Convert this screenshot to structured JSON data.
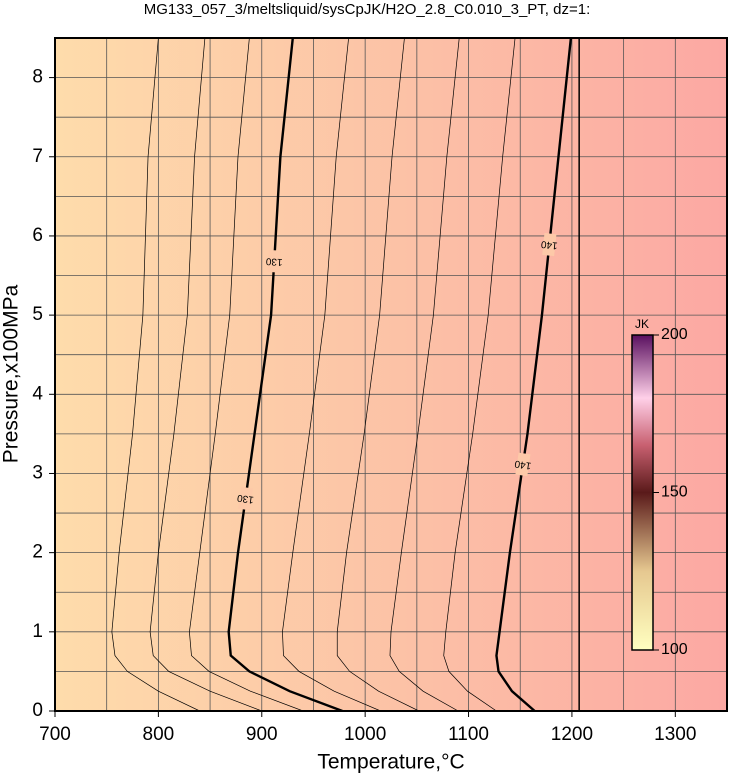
{
  "chart_data": {
    "type": "contour",
    "title": "MG133_057_3/meltsliquid/sysCpJK/H2O_2.8_C0.010_3_PT, dz=1:",
    "x_label": "Temperature,°C",
    "y_label": "Pressure,x100MPa",
    "xlim": [
      700,
      1350
    ],
    "ylim": [
      0,
      8.5
    ],
    "xticks": [
      700,
      800,
      900,
      1000,
      1100,
      1200,
      1300
    ],
    "yticks": [
      0,
      1,
      2,
      3,
      4,
      5,
      6,
      7,
      8
    ],
    "x_minor_grid": [
      750,
      850,
      950,
      1050,
      1150,
      1250,
      1350
    ],
    "y_minor_grid": [
      0.5,
      1.5,
      2.5,
      3.5,
      4.5,
      5.5,
      6.5,
      7.5
    ],
    "grid": true,
    "contours": [
      {
        "level": 124,
        "bold": false,
        "x": [
          800,
          790,
          785,
          775,
          762,
          755,
          758,
          770,
          800,
          840
        ],
        "y": [
          8.5,
          7,
          5,
          3.5,
          2,
          1,
          0.7,
          0.5,
          0.25,
          0
        ]
      },
      {
        "level": 126,
        "bold": false,
        "x": [
          845,
          835,
          828,
          815,
          800,
          792,
          795,
          810,
          850,
          900
        ],
        "y": [
          8.5,
          7,
          5,
          3.5,
          2,
          1,
          0.7,
          0.5,
          0.25,
          0
        ]
      },
      {
        "level": 128,
        "bold": false,
        "x": [
          888,
          877,
          869,
          855,
          840,
          830,
          832,
          849,
          889,
          940
        ],
        "y": [
          8.5,
          7,
          5,
          3.5,
          2,
          1,
          0.7,
          0.5,
          0.25,
          0
        ]
      },
      {
        "level": 130,
        "label": "130",
        "bold": true,
        "x": [
          930,
          918,
          909,
          893,
          877,
          868,
          870,
          888,
          927,
          978
        ],
        "y": [
          8.5,
          7,
          5,
          3.5,
          2,
          1,
          0.7,
          0.5,
          0.25,
          0
        ]
      },
      {
        "level": 132,
        "bold": false,
        "x": [
          984,
          972,
          961,
          946,
          930,
          920,
          921,
          936,
          970,
          1015
        ],
        "y": [
          8.5,
          7,
          5,
          3.5,
          2,
          1,
          0.7,
          0.5,
          0.25,
          0
        ]
      },
      {
        "level": 134,
        "bold": false,
        "x": [
          1038,
          1026,
          1014,
          999,
          982,
          973,
          973,
          985,
          1013,
          1052
        ],
        "y": [
          8.5,
          7,
          5,
          3.5,
          2,
          1,
          0.7,
          0.5,
          0.25,
          0
        ]
      },
      {
        "level": 136,
        "bold": false,
        "x": [
          1091,
          1079,
          1066,
          1051,
          1035,
          1025,
          1024,
          1033,
          1056,
          1090
        ],
        "y": [
          8.5,
          7,
          5,
          3.5,
          2,
          1,
          0.7,
          0.5,
          0.25,
          0
        ]
      },
      {
        "level": 138,
        "bold": false,
        "x": [
          1145,
          1133,
          1119,
          1104,
          1087,
          1078,
          1076,
          1081,
          1099,
          1127
        ],
        "y": [
          8.5,
          7,
          5,
          3.5,
          2,
          1,
          0.7,
          0.5,
          0.25,
          0
        ]
      },
      {
        "level": 140,
        "label": "140",
        "bold": true,
        "x": [
          1199,
          1187,
          1171,
          1157,
          1140,
          1130,
          1127,
          1129,
          1142,
          1164
        ],
        "y": [
          8.5,
          7,
          5,
          3.5,
          2,
          1,
          0.7,
          0.5,
          0.25,
          0
        ]
      }
    ],
    "boundary": {
      "x": [
        1207,
        1207
      ],
      "y": [
        0,
        8.5
      ]
    },
    "colorbar": {
      "label": "JK",
      "lim": [
        100,
        200
      ],
      "ticks": [
        100,
        150,
        200
      ]
    }
  }
}
